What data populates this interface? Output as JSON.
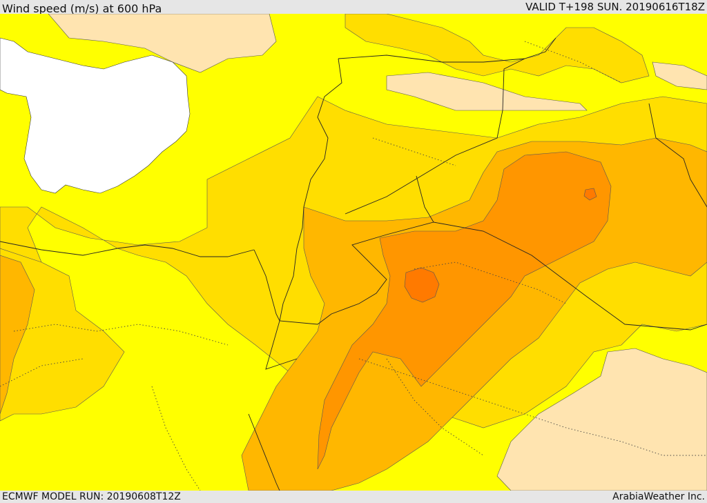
{
  "header": {
    "title": "Wind speed (m/s) at 600 hPa",
    "valid": "VALID T+198 SUN. 20190616T18Z"
  },
  "footer": {
    "model_run": "ECMWF MODEL RUN: 20190608T12Z",
    "credit": "ArabiaWeather Inc."
  },
  "colors": {
    "sea": "#ffffff",
    "band_lt_10": "#ffe4b0",
    "band_10_15": "#ffff00",
    "band_15_20": "#ffde00",
    "band_20_25": "#ffb700",
    "band_25_30": "#ff9600",
    "band_gt_30": "#ff7a00"
  }
}
